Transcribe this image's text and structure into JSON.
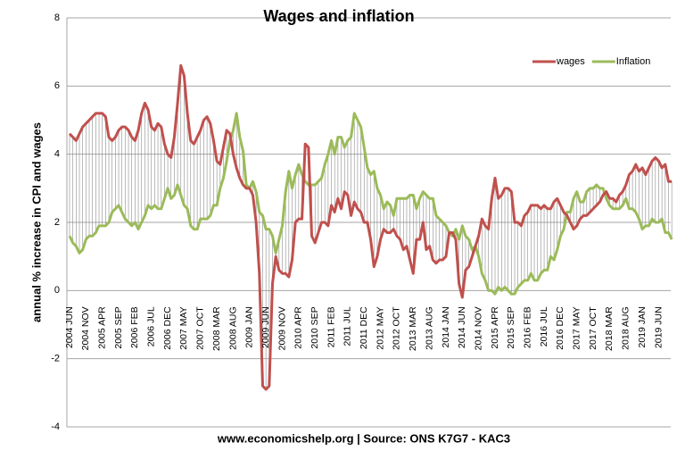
{
  "chart_data": {
    "type": "line",
    "title": "Wages and inflation",
    "y_label": "annual % increase in CPI and wages",
    "source": "www.economicshelp.org | Source: ONS K7G7 - KAC3",
    "ylim": [
      -4,
      8
    ],
    "yticks": [
      -4,
      -2,
      0,
      2,
      4,
      6,
      8
    ],
    "grid": true,
    "legend": "top-right",
    "categories": [
      "2004 JUN",
      null,
      null,
      null,
      null,
      "2004 NOV",
      null,
      null,
      null,
      null,
      "2005 APR",
      null,
      null,
      null,
      null,
      "2005 SEP",
      null,
      null,
      null,
      null,
      "2006 FEB",
      null,
      null,
      null,
      null,
      "2006 JUL",
      null,
      null,
      null,
      null,
      "2006 DEC",
      null,
      null,
      null,
      null,
      "2007 MAY",
      null,
      null,
      null,
      null,
      "2007 OCT",
      null,
      null,
      null,
      null,
      "2008 MAR",
      null,
      null,
      null,
      null,
      "2008 AUG",
      null,
      null,
      null,
      null,
      "2009 JAN",
      null,
      null,
      null,
      null,
      "2009 JUN",
      null,
      null,
      null,
      null,
      "2009 NOV",
      null,
      null,
      null,
      null,
      "2010 APR",
      null,
      null,
      null,
      null,
      "2010 SEP",
      null,
      null,
      null,
      null,
      "2011 FEB",
      null,
      null,
      null,
      null,
      "2011 JUL",
      null,
      null,
      null,
      null,
      "2011 DEC",
      null,
      null,
      null,
      null,
      "2012 MAY",
      null,
      null,
      null,
      null,
      "2012 OCT",
      null,
      null,
      null,
      null,
      "2013 MAR",
      null,
      null,
      null,
      null,
      "2013 AUG",
      null,
      null,
      null,
      null,
      "2014 JAN",
      null,
      null,
      null,
      null,
      "2014 JUN",
      null,
      null,
      null,
      null,
      "2014 NOV",
      null,
      null,
      null,
      null,
      "2015 APR",
      null,
      null,
      null,
      null,
      "2015 SEP",
      null,
      null,
      null,
      null,
      "2016 FEB",
      null,
      null,
      null,
      null,
      "2016 JUL",
      null,
      null,
      null,
      null,
      "2016 DEC",
      null,
      null,
      null,
      null,
      "2017 MAY",
      null,
      null,
      null,
      null,
      "2017 OCT",
      null,
      null,
      null,
      null,
      "2018 MAR",
      null,
      null,
      null,
      null,
      "2018 AUG",
      null,
      null,
      null,
      null,
      "2019 JAN",
      null,
      null,
      null,
      null,
      "2019 JUN",
      null,
      null,
      null,
      null
    ],
    "series": [
      {
        "name": "wages",
        "color": "#c0504d",
        "values": [
          4.6,
          4.5,
          4.4,
          4.6,
          4.8,
          4.9,
          5.0,
          5.1,
          5.2,
          5.2,
          5.2,
          5.1,
          4.5,
          4.4,
          4.5,
          4.7,
          4.8,
          4.8,
          4.7,
          4.5,
          4.4,
          4.7,
          5.2,
          5.5,
          5.3,
          4.8,
          4.7,
          4.9,
          4.8,
          4.3,
          4.0,
          3.9,
          4.5,
          5.5,
          6.6,
          6.3,
          5.2,
          4.4,
          4.3,
          4.5,
          4.7,
          5.0,
          5.1,
          4.9,
          4.4,
          3.8,
          3.7,
          4.2,
          4.7,
          4.6,
          4.0,
          3.6,
          3.3,
          3.1,
          3.0,
          3.0,
          2.8,
          2.0,
          0.5,
          -2.8,
          -2.9,
          -2.8,
          0.2,
          1.0,
          0.6,
          0.5,
          0.5,
          0.4,
          0.9,
          2.0,
          2.1,
          2.1,
          4.3,
          4.2,
          1.6,
          1.4,
          1.7,
          2.0,
          2.0,
          1.9,
          2.5,
          2.3,
          2.7,
          2.4,
          2.9,
          2.8,
          2.2,
          2.6,
          2.4,
          2.3,
          2.0,
          2.0,
          1.5,
          0.7,
          1.0,
          1.5,
          1.8,
          1.7,
          1.7,
          1.8,
          1.6,
          1.5,
          1.2,
          1.3,
          0.9,
          0.5,
          1.5,
          1.5,
          2.0,
          1.2,
          1.3,
          0.9,
          0.8,
          0.9,
          0.9,
          1.0,
          1.7,
          1.7,
          1.5,
          0.2,
          -0.2,
          0.6,
          0.7,
          1.0,
          1.3,
          1.6,
          2.1,
          1.9,
          1.8,
          2.7,
          3.3,
          2.7,
          2.8,
          3.0,
          3.0,
          2.9,
          2.0,
          2.0,
          1.9,
          2.2,
          2.3,
          2.5,
          2.5,
          2.5,
          2.4,
          2.5,
          2.4,
          2.4,
          2.6,
          2.7,
          2.5,
          2.3,
          2.2,
          2.0,
          1.8,
          1.9,
          2.1,
          2.2,
          2.2,
          2.3,
          2.4,
          2.5,
          2.6,
          2.8,
          2.9,
          2.7,
          2.7,
          2.6,
          2.8,
          2.9,
          3.1,
          3.4,
          3.5,
          3.7,
          3.5,
          3.6,
          3.4,
          3.6,
          3.8,
          3.9,
          3.8,
          3.6,
          3.7,
          3.2,
          3.2
        ]
      },
      {
        "name": "Inflation",
        "color": "#9bbb59",
        "values": [
          1.6,
          1.4,
          1.3,
          1.1,
          1.2,
          1.5,
          1.6,
          1.6,
          1.7,
          1.9,
          1.9,
          1.9,
          2.0,
          2.3,
          2.4,
          2.5,
          2.3,
          2.1,
          2.0,
          1.9,
          2.0,
          1.8,
          2.0,
          2.2,
          2.5,
          2.4,
          2.5,
          2.4,
          2.4,
          2.7,
          3.0,
          2.7,
          2.8,
          3.1,
          2.8,
          2.5,
          2.4,
          1.9,
          1.8,
          1.8,
          2.1,
          2.1,
          2.1,
          2.2,
          2.5,
          2.5,
          3.0,
          3.3,
          3.8,
          4.4,
          4.7,
          5.2,
          4.5,
          4.1,
          3.1,
          3.0,
          3.2,
          2.9,
          2.3,
          2.2,
          1.8,
          1.8,
          1.6,
          1.1,
          1.5,
          1.9,
          2.9,
          3.5,
          3.0,
          3.4,
          3.7,
          3.4,
          3.2,
          3.1,
          3.1,
          3.1,
          3.2,
          3.3,
          3.7,
          4.0,
          4.4,
          4.0,
          4.5,
          4.5,
          4.2,
          4.4,
          4.5,
          5.2,
          5.0,
          4.8,
          4.2,
          3.6,
          3.4,
          3.5,
          3.0,
          2.8,
          2.4,
          2.6,
          2.5,
          2.2,
          2.7,
          2.7,
          2.7,
          2.7,
          2.8,
          2.8,
          2.4,
          2.7,
          2.9,
          2.8,
          2.7,
          2.7,
          2.2,
          2.1,
          2.0,
          1.9,
          1.7,
          1.6,
          1.8,
          1.5,
          1.9,
          1.6,
          1.5,
          1.2,
          1.3,
          1.0,
          0.5,
          0.3,
          0.0,
          0.0,
          -0.1,
          0.1,
          0.0,
          0.1,
          0.0,
          -0.1,
          -0.1,
          0.1,
          0.2,
          0.3,
          0.3,
          0.5,
          0.3,
          0.3,
          0.5,
          0.6,
          0.6,
          1.0,
          0.9,
          1.2,
          1.6,
          1.8,
          2.3,
          2.3,
          2.7,
          2.9,
          2.6,
          2.6,
          2.9,
          3.0,
          3.0,
          3.1,
          3.0,
          3.0,
          2.7,
          2.5,
          2.4,
          2.4,
          2.4,
          2.5,
          2.7,
          2.4,
          2.4,
          2.3,
          2.1,
          1.8,
          1.9,
          1.9,
          2.1,
          2.0,
          2.0,
          2.1,
          1.7,
          1.7,
          1.5
        ]
      }
    ]
  }
}
